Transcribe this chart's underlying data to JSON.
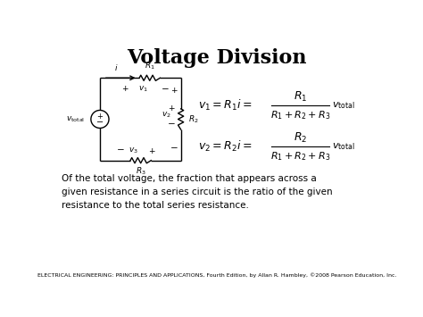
{
  "title": "Voltage Division",
  "title_fontsize": 16,
  "title_fontweight": "bold",
  "bg_color": "#ffffff",
  "text_color": "#000000",
  "description": "Of the total voltage, the fraction that appears across a\ngiven resistance in a series circuit is the ratio of the given\nresistance to the total series resistance.",
  "footer": "ELECTRICAL ENGINEERING: PRINCIPLES AND APPLICATIONS, Fourth Edition, by Allan R. Hambley, ©2008 Pearson Education, Inc.",
  "footer_fontsize": 4.5,
  "desc_fontsize": 7.5,
  "circuit_color": "#000000",
  "line_width": 1.0,
  "eq_fontsize": 9,
  "eq_small_fontsize": 8
}
